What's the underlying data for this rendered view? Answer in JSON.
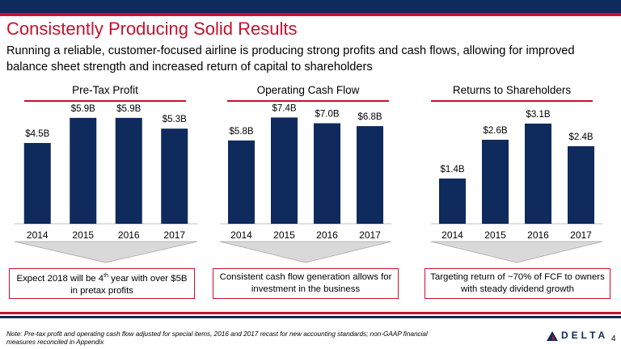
{
  "title": "Consistently Producing Solid Results",
  "subtitle": "Running a reliable, customer-focused airline is producing strong profits and cash flows, allowing for improved balance sheet strength and increased return of capital to shareholders",
  "chart_data": [
    {
      "type": "bar",
      "title": "Pre-Tax Profit",
      "categories": [
        "2014",
        "2015",
        "2016",
        "2017"
      ],
      "values": [
        4.5,
        5.9,
        5.9,
        5.3
      ],
      "data_labels": [
        "$4.5B",
        "$5.9B",
        "$5.9B",
        "$5.3B"
      ],
      "ylim": [
        0,
        7.2
      ],
      "callout": {
        "before": "Expect 2018 will be 4",
        "sup": "th",
        "after": " year with over $5B in pretax profits"
      }
    },
    {
      "type": "bar",
      "title": "Operating Cash Flow",
      "categories": [
        "2014",
        "2015",
        "2016",
        "2017"
      ],
      "values": [
        5.8,
        7.4,
        7.0,
        6.8
      ],
      "data_labels": [
        "$5.8B",
        "$7.4B",
        "$7.0B",
        "$6.8B"
      ],
      "ylim": [
        0,
        9.0
      ],
      "callout": {
        "before": "Consistent cash flow generation allows for investment in the business",
        "sup": "",
        "after": ""
      }
    },
    {
      "type": "bar",
      "title": "Returns to Shareholders",
      "categories": [
        "2014",
        "2015",
        "2016",
        "2017"
      ],
      "values": [
        1.4,
        2.6,
        3.1,
        2.4
      ],
      "data_labels": [
        "$1.4B",
        "$2.6B",
        "$3.1B",
        "$2.4B"
      ],
      "ylim": [
        0,
        4.0
      ],
      "callout": {
        "before": "Targeting return of ~70% of FCF to owners with steady dividend growth",
        "sup": "",
        "after": ""
      }
    }
  ],
  "colors": {
    "bar": "#0f2a5c",
    "accent": "#c8102e",
    "navy": "#0f2a5c",
    "arrow": "#d9d9d9"
  },
  "footer": {
    "note": "Note: Pre-tax profit and operating cash flow adjusted for special items, 2016 and 2017 recast for new accounting standards; non-GAAP financial measures reconciled in Appendix",
    "logo_text": "DELTA",
    "page_number": "4"
  }
}
